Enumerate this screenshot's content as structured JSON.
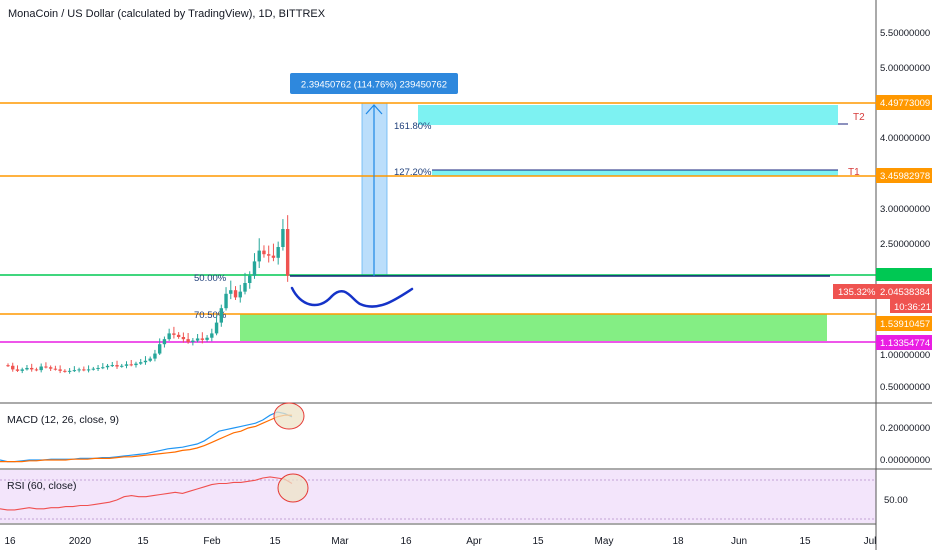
{
  "header": {
    "title": "MonaCoin / US Dollar (calculated by TradingView), 1D, BITTREX"
  },
  "main_axis": {
    "ticks": [
      "5.50000000",
      "5.00000000",
      "4.00000000",
      "3.00000000",
      "2.50000000",
      "1.00000000",
      "0.50000000"
    ]
  },
  "price_tags": {
    "t2_level": "4.49773009",
    "t1_level": "3.45982978",
    "current_price": "2.04538384",
    "pct_change": "135.32%",
    "countdown": "10:36:21",
    "support_level": "1.53910457",
    "magenta_level": "1.13354774"
  },
  "annotations": {
    "measure_label": "2.39450762 (114.76%) 239450762",
    "fib_161": "161.80%",
    "fib_127": "127.20%",
    "fib_50": "50.00%",
    "fib_70": "70.50%",
    "target_1": "T1",
    "target_2": "T2"
  },
  "macd": {
    "label": "MACD (12, 26, close, 9)",
    "ticks": [
      "0.20000000",
      "0.00000000"
    ]
  },
  "rsi": {
    "label": "RSI (60, close)",
    "ticks": [
      "50.00"
    ]
  },
  "x_axis": {
    "ticks": [
      "16",
      "2020",
      "15",
      "Feb",
      "15",
      "Mar",
      "16",
      "Apr",
      "15",
      "May",
      "18",
      "Jun",
      "15",
      "Jul"
    ]
  },
  "colors": {
    "candle_up": "#26a69a",
    "candle_down": "#ef5350",
    "orange_line": "#ff9800",
    "green_line": "#00c853",
    "magenta_line": "#e91ee3",
    "cyan_box": "#7df2f2",
    "green_box": "#84ee84",
    "rsi_band": "#f3e5fb",
    "tag_blue": "#2e88dd",
    "macd_line": "#2196f3",
    "signal_line": "#ff6d00",
    "rsi_line": "#f05050"
  },
  "chart_data": [
    {
      "type": "candlestick",
      "title": "MonaCoin / US Dollar (calculated by TradingView), 1D, BITTREX",
      "ylim": [
        0.0,
        5.8
      ],
      "horizontal_levels": [
        4.49773009,
        3.45982978,
        2.05,
        1.53910457,
        1.13354774
      ],
      "closes": [
        0.85,
        0.8,
        0.78,
        0.8,
        0.82,
        0.8,
        0.79,
        0.84,
        0.83,
        0.81,
        0.8,
        0.78,
        0.77,
        0.78,
        0.79,
        0.8,
        0.79,
        0.8,
        0.81,
        0.82,
        0.83,
        0.85,
        0.86,
        0.84,
        0.85,
        0.87,
        0.86,
        0.88,
        0.9,
        0.92,
        0.95,
        1.02,
        1.15,
        1.22,
        1.3,
        1.28,
        1.25,
        1.22,
        1.18,
        1.2,
        1.23,
        1.21,
        1.24,
        1.3,
        1.45,
        1.65,
        1.85,
        1.9,
        1.8,
        1.88,
        2.0,
        2.1,
        2.3,
        2.45,
        2.4,
        2.38,
        2.35,
        2.5,
        2.75,
        2.1
      ]
    },
    {
      "type": "line",
      "title": "MACD (12, 26, close, 9)",
      "series": [
        {
          "values": [
            0.0,
            -0.01,
            -0.01,
            -0.005,
            0.0,
            0.0,
            0.0,
            0.005,
            0.005,
            0.005,
            0.005,
            0.01,
            0.01,
            0.01,
            0.015,
            0.015,
            0.02,
            0.025,
            0.03,
            0.035,
            0.04,
            0.05,
            0.06,
            0.07,
            0.075,
            0.08,
            0.09,
            0.1,
            0.12,
            0.15,
            0.18,
            0.19,
            0.2,
            0.21,
            0.22,
            0.23,
            0.25,
            0.28,
            0.3,
            0.29,
            0.27
          ]
        },
        {
          "values": [
            -0.01,
            -0.01,
            -0.01,
            -0.01,
            -0.005,
            -0.005,
            0.0,
            0.0,
            0.0,
            0.0,
            0.005,
            0.005,
            0.005,
            0.01,
            0.01,
            0.01,
            0.015,
            0.02,
            0.02,
            0.025,
            0.03,
            0.035,
            0.04,
            0.045,
            0.05,
            0.06,
            0.065,
            0.075,
            0.09,
            0.11,
            0.13,
            0.15,
            0.17,
            0.18,
            0.2,
            0.21,
            0.23,
            0.25,
            0.27,
            0.28,
            0.28
          ]
        }
      ]
    },
    {
      "type": "line",
      "title": "RSI (60, close)",
      "series": [
        {
          "values": [
            42,
            41,
            41,
            42,
            43,
            42,
            42,
            43,
            43,
            44,
            44,
            45,
            45,
            46,
            47,
            48,
            50,
            53,
            54,
            53,
            53,
            54,
            55,
            56,
            57,
            56,
            58,
            60,
            62,
            64,
            65,
            65,
            66,
            66,
            67,
            68,
            70,
            71,
            70,
            69,
            65
          ]
        }
      ]
    }
  ]
}
